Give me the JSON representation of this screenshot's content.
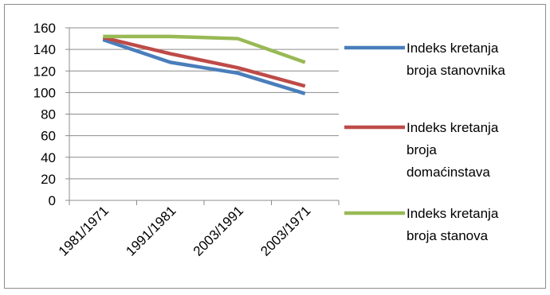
{
  "chart_data": {
    "type": "line",
    "title": "",
    "xlabel": "",
    "ylabel": "",
    "categories": [
      "1981/1971",
      "1991/1981",
      "2003/1991",
      "2003/1971"
    ],
    "ylim": [
      0,
      160
    ],
    "yticks": [
      0,
      20,
      40,
      60,
      80,
      100,
      120,
      140,
      160
    ],
    "grid": true,
    "legend_position": "right",
    "series": [
      {
        "name_lines": [
          "Indeks kretanja",
          "broja stanovnika"
        ],
        "color": "#4a7ebb",
        "values": [
          149,
          128,
          118,
          99
        ]
      },
      {
        "name_lines": [
          "Indeks kretanja",
          "broja",
          "domaćinstava"
        ],
        "color": "#be4b48",
        "values": [
          151,
          136,
          123,
          106
        ]
      },
      {
        "name_lines": [
          "Indeks kretanja",
          "broja stanova"
        ],
        "color": "#98b954",
        "values": [
          152,
          152,
          150,
          128
        ]
      }
    ]
  }
}
